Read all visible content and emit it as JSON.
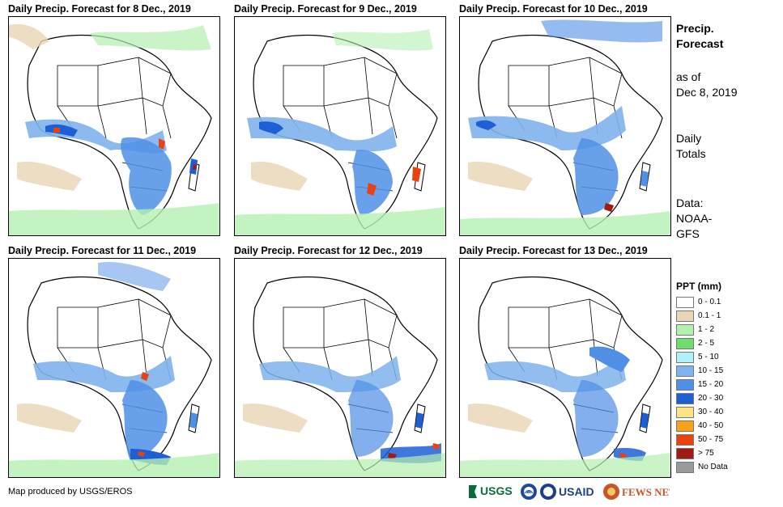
{
  "panels": [
    {
      "title": "Daily Precip. Forecast for 8 Dec., 2019"
    },
    {
      "title": "Daily Precip. Forecast for 9 Dec., 2019"
    },
    {
      "title": "Daily Precip. Forecast for 10 Dec., 2019"
    },
    {
      "title": "Daily Precip. Forecast for 11 Dec., 2019"
    },
    {
      "title": "Daily Precip. Forecast for 12 Dec., 2019"
    },
    {
      "title": "Daily Precip. Forecast for 13 Dec., 2019"
    }
  ],
  "sidebar": {
    "title_line1": "Precip.",
    "title_line2": "Forecast",
    "asof_line1": "as of",
    "asof_line2": "Dec 8, 2019",
    "totals_line1": "Daily",
    "totals_line2": "Totals",
    "data_line1": "Data:",
    "data_line2": "NOAA-",
    "data_line3": "GFS"
  },
  "legend": {
    "title": "PPT (mm)",
    "items": [
      {
        "label": "0 - 0.1",
        "color": "#ffffff"
      },
      {
        "label": "0.1 - 1",
        "color": "#e9d6b4"
      },
      {
        "label": "1 - 2",
        "color": "#b4f0b0"
      },
      {
        "label": "2 - 5",
        "color": "#6fdc6f"
      },
      {
        "label": "5 - 10",
        "color": "#b0eef8"
      },
      {
        "label": "10 - 15",
        "color": "#7fb3ec"
      },
      {
        "label": "15 - 20",
        "color": "#4f8fe6"
      },
      {
        "label": "20 - 30",
        "color": "#1f5fd6"
      },
      {
        "label": "30 - 40",
        "color": "#fde587"
      },
      {
        "label": "40 - 50",
        "color": "#f8a21a"
      },
      {
        "label": "50 - 75",
        "color": "#e8420e"
      },
      {
        "label": "> 75",
        "color": "#a11a14"
      },
      {
        "label": "No Data",
        "color": "#9a9a9a"
      }
    ]
  },
  "footer": {
    "credit": "Map produced by USGS/EROS",
    "logos": [
      "USGS",
      "NOAA",
      "USAID",
      "FEWS NET"
    ]
  }
}
